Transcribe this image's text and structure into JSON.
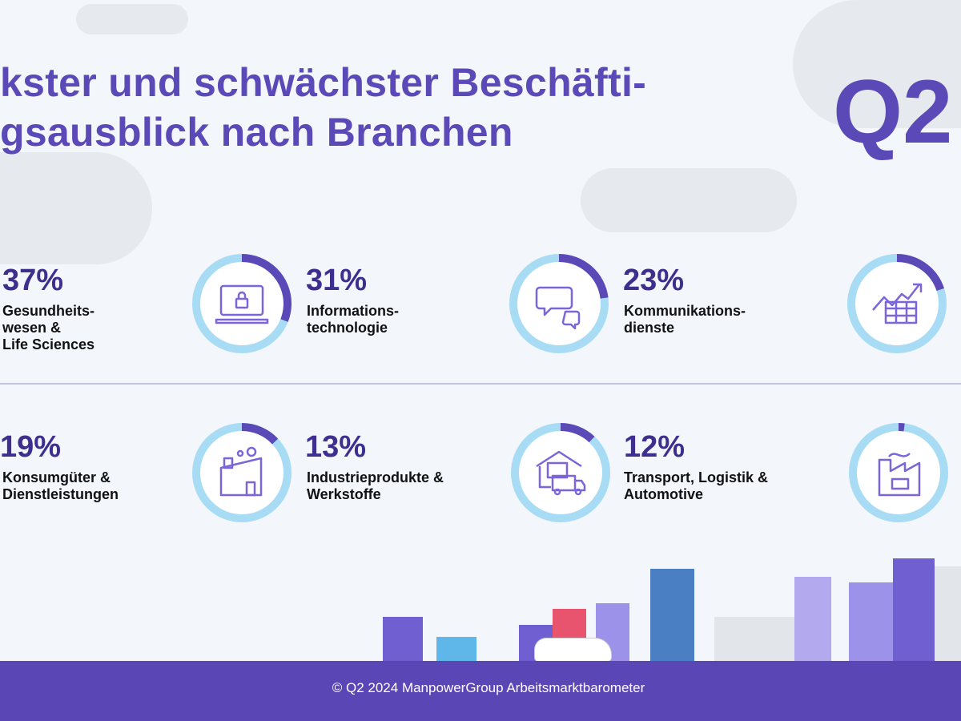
{
  "title": {
    "line1": "kster und schwächster Beschäfti-",
    "line2": "gsausblick nach Branchen",
    "quarter": "Q2"
  },
  "colors": {
    "accent": "#5b49b8",
    "ring": "#a8dcf5",
    "arc": "#5b49b8",
    "footer": "#5b46b5"
  },
  "sectors": [
    {
      "percent": "37%",
      "label_lines": [
        "Gesundheits-",
        "wesen &",
        "Life Sciences"
      ]
    },
    {
      "percent": "31%",
      "label_lines": [
        "Informations-",
        "technologie"
      ],
      "fill": 0.31,
      "icon": "laptop-lock-icon"
    },
    {
      "percent": "23%",
      "label_lines": [
        "Kommunikations-",
        "dienste"
      ],
      "fill": 0.23,
      "icon": "chat-bubbles-icon"
    },
    {
      "fill": 0.2,
      "icon": "chart-growth-icon"
    },
    {
      "percent": "19%",
      "label_lines": [
        "Konsumgüter &",
        "Dienstleistungen"
      ]
    },
    {
      "percent": "13%",
      "label_lines": [
        "Industrieprodukte &",
        "Werkstoffe"
      ],
      "fill": 0.13,
      "icon": "factory-icon"
    },
    {
      "percent": "12%",
      "label_lines": [
        "Transport, Logistik &",
        "Automotive"
      ],
      "fill": 0.12,
      "icon": "warehouse-truck-icon"
    },
    {
      "fill": 0.02,
      "icon": "energy-plant-icon"
    }
  ],
  "footer": {
    "text": "© Q2 2024 ManpowerGroup Arbeitsmarktbarometer"
  }
}
